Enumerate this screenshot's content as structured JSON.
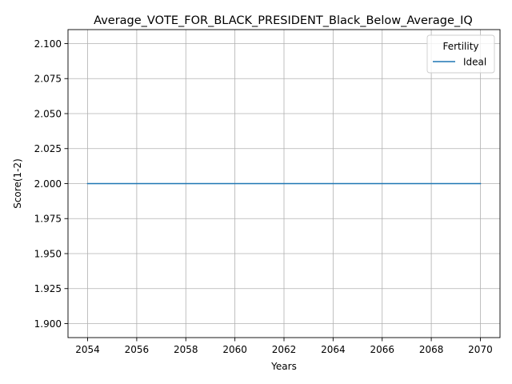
{
  "chart_data": {
    "type": "line",
    "title": "Average_VOTE_FOR_BLACK_PRESIDENT_Black_Below_Average_IQ",
    "xlabel": "Years",
    "ylabel": "Score(1-2)",
    "xlim": [
      2053.2,
      2070.8
    ],
    "ylim": [
      1.89,
      2.11
    ],
    "x_ticks": [
      2054,
      2056,
      2058,
      2060,
      2062,
      2064,
      2066,
      2068,
      2070
    ],
    "y_ticks": [
      1.9,
      1.925,
      1.95,
      1.975,
      2.0,
      2.025,
      2.05,
      2.075,
      2.1
    ],
    "x_tick_labels": [
      "2054",
      "2056",
      "2058",
      "2060",
      "2062",
      "2064",
      "2066",
      "2068",
      "2070"
    ],
    "y_tick_labels": [
      "1.900",
      "1.925",
      "1.950",
      "1.975",
      "2.000",
      "2.025",
      "2.050",
      "2.075",
      "2.100"
    ],
    "grid": true,
    "legend": {
      "title": "Fertility",
      "position": "upper right"
    },
    "series": [
      {
        "name": "Ideal",
        "color": "#1f77b4",
        "x": [
          2054,
          2055,
          2056,
          2057,
          2058,
          2059,
          2060,
          2061,
          2062,
          2063,
          2064,
          2065,
          2066,
          2067,
          2068,
          2069,
          2070
        ],
        "y": [
          2.0,
          2.0,
          2.0,
          2.0,
          2.0,
          2.0,
          2.0,
          2.0,
          2.0,
          2.0,
          2.0,
          2.0,
          2.0,
          2.0,
          2.0,
          2.0,
          2.0
        ]
      }
    ]
  }
}
